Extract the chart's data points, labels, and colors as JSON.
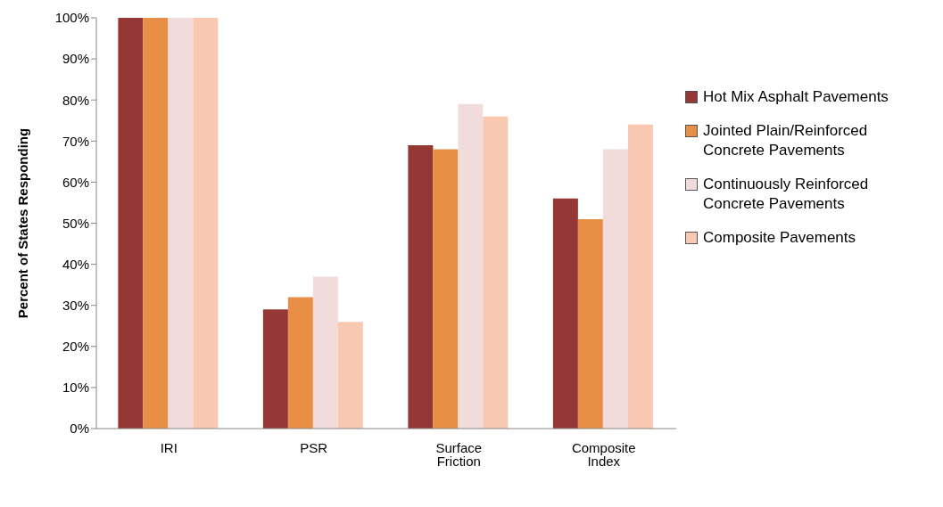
{
  "chart_data": {
    "type": "bar",
    "ylabel": "Percent of States Responding",
    "categories": [
      "IRI",
      "PSR",
      "Surface Friction",
      "Composite Index"
    ],
    "series": [
      {
        "name": "Hot Mix Asphalt Pavements",
        "color": "#953735",
        "values": [
          100,
          29,
          69,
          56
        ]
      },
      {
        "name": "Jointed Plain/Reinforced Concrete Pavements",
        "color": "#e88f45",
        "values": [
          100,
          32,
          68,
          51
        ]
      },
      {
        "name": "Continuously Reinforced Concrete Pavements",
        "color": "#f2dcdb",
        "values": [
          100,
          37,
          79,
          68
        ]
      },
      {
        "name": "Composite Pavements",
        "color": "#f9c8b0",
        "values": [
          100,
          26,
          76,
          74
        ]
      }
    ],
    "ylim": [
      0,
      100
    ],
    "yticks": [
      {
        "value": 0,
        "label": "0%"
      },
      {
        "value": 10,
        "label": "10%"
      },
      {
        "value": 20,
        "label": "20%"
      },
      {
        "value": 30,
        "label": "30%"
      },
      {
        "value": 40,
        "label": "40%"
      },
      {
        "value": 50,
        "label": "50%"
      },
      {
        "value": 60,
        "label": "60%"
      },
      {
        "value": 70,
        "label": "70%"
      },
      {
        "value": 80,
        "label": "80%"
      },
      {
        "value": 90,
        "label": "90%"
      },
      {
        "value": 100,
        "label": "100%"
      }
    ],
    "grid": false,
    "legend": "right"
  }
}
